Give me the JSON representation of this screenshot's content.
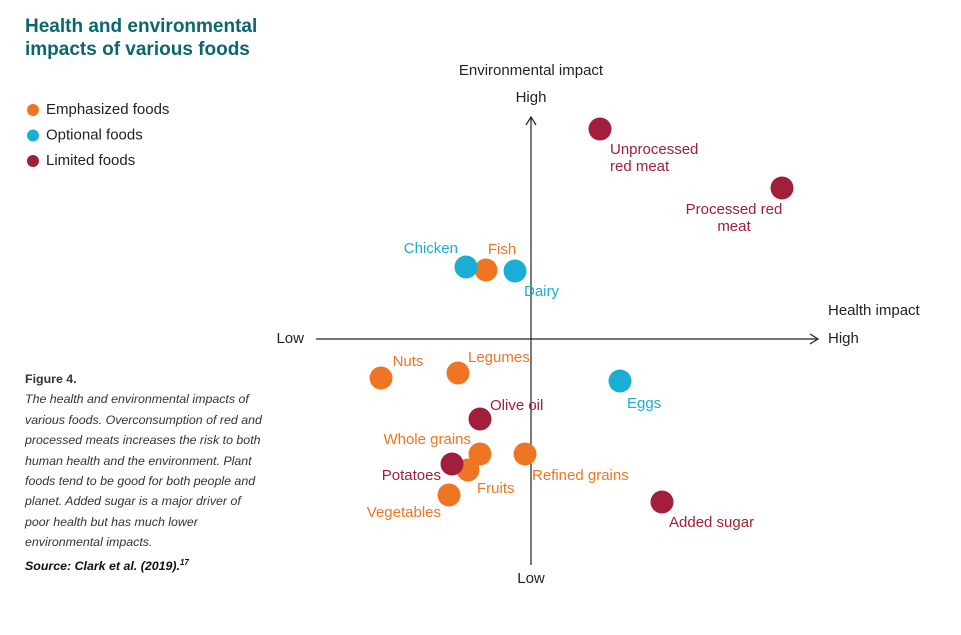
{
  "chart_data": {
    "type": "scatter",
    "title": "Health and environmental impacts of various foods",
    "y_axis_label": "Environmental impact",
    "y_axis_high": "High",
    "y_axis_low": "Low",
    "x_axis_label": "Health impact",
    "x_axis_high": "High",
    "x_axis_low": "Low",
    "xlim": [
      -215,
      287
    ],
    "ylim": [
      -226,
      222
    ],
    "series": [
      {
        "name": "Emphasized foods",
        "color": "#ee7623",
        "labels": [
          "Fish",
          "Nuts",
          "Legumes",
          "Whole grains",
          "Refined grains",
          "Fruits",
          "Vegetables"
        ],
        "x": [
          -45,
          -150,
          -73,
          -51,
          -6,
          -63,
          -82
        ],
        "y": [
          69,
          -39,
          -34,
          -115,
          -115,
          -131,
          -156
        ]
      },
      {
        "name": "Optional foods",
        "color": "#1aaed6",
        "labels": [
          "Chicken",
          "Dairy",
          "Eggs"
        ],
        "x": [
          -65,
          -16,
          89
        ],
        "y": [
          72,
          68,
          -42
        ]
      },
      {
        "name": "Limited foods",
        "color": "#a21e3b",
        "labels": [
          "Unprocessed red meat",
          "Processed red meat",
          "Olive oil",
          "Potatoes",
          "Added sugar"
        ],
        "x": [
          69,
          251,
          -51,
          -79,
          131
        ],
        "y": [
          210,
          151,
          -80,
          -125,
          -163
        ]
      }
    ],
    "figure_label": "Figure 4.",
    "caption": "The health and environmental impacts of various foods. Overconsumption of red and processed meats increases the risk to both human health and the environment. Plant foods tend to be good for both people and planet. Added sugar is a major driver of poor health but has much lower environmental impacts.",
    "source": "Source: Clark et al. (2019).",
    "source_ref": "17"
  }
}
